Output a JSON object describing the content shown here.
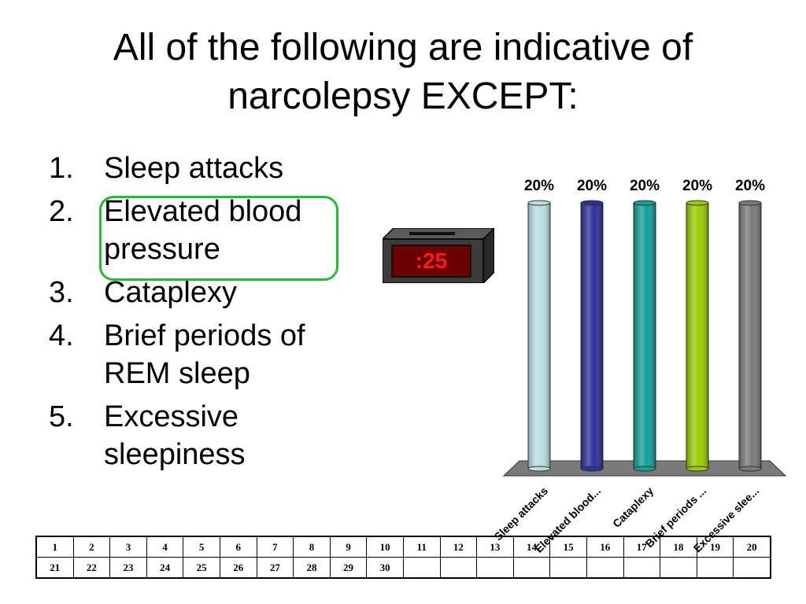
{
  "question": {
    "line1": "All of the following are indicative of",
    "line2": "narcolepsy EXCEPT:"
  },
  "options": [
    {
      "num": "1.",
      "lines": [
        "Sleep attacks"
      ]
    },
    {
      "num": "2.",
      "lines": [
        "Elevated blood",
        "pressure"
      ]
    },
    {
      "num": "3.",
      "lines": [
        "Cataplexy"
      ]
    },
    {
      "num": "4.",
      "lines": [
        "Brief periods of",
        "REM sleep"
      ]
    },
    {
      "num": "5.",
      "lines": [
        "Excessive",
        "sleepiness"
      ]
    }
  ],
  "highlighted_option": 2,
  "timer": {
    "display": ":25"
  },
  "chart_data": {
    "type": "bar",
    "categories": [
      "Sleep attacks",
      "Elevated blood...",
      "Cataplexy",
      "Brief periods ...",
      "Excessive slee..."
    ],
    "values": [
      20,
      20,
      20,
      20,
      20
    ],
    "value_labels": [
      "20%",
      "20%",
      "20%",
      "20%",
      "20%"
    ],
    "colors": [
      "#b8dfe3",
      "#2e2e9a",
      "#159e9a",
      "#99cc00",
      "#7a7a7a"
    ],
    "ylim": [
      0,
      20
    ],
    "grid": false,
    "title": "",
    "xlabel": "",
    "ylabel": ""
  },
  "response_grid": {
    "rows": [
      [
        "1",
        "2",
        "3",
        "4",
        "5",
        "6",
        "7",
        "8",
        "9",
        "10",
        "11",
        "12",
        "13",
        "14",
        "15",
        "16",
        "17",
        "18",
        "19",
        "20"
      ],
      [
        "21",
        "22",
        "23",
        "24",
        "25",
        "26",
        "27",
        "28",
        "29",
        "30",
        "",
        "",
        "",
        "",
        "",
        "",
        "",
        "",
        "",
        ""
      ]
    ]
  }
}
